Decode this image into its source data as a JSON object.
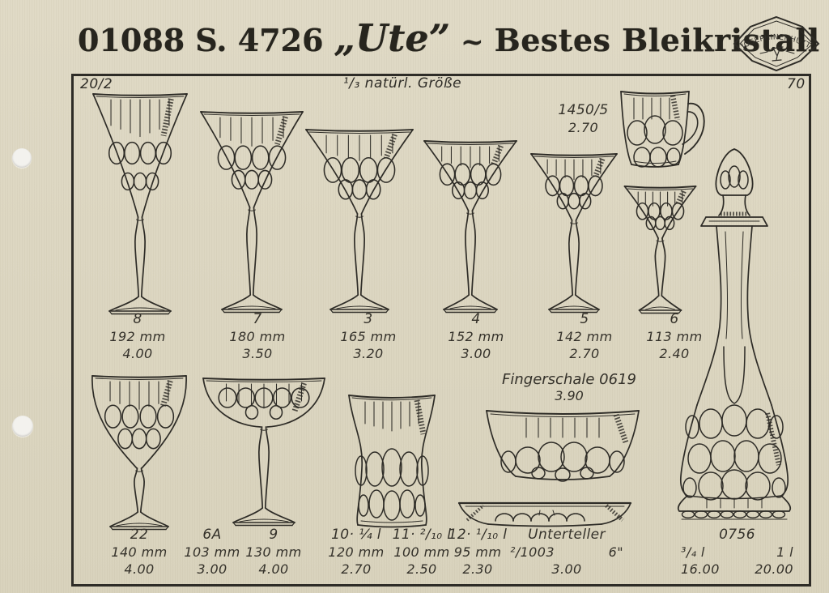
{
  "header": {
    "catalog_number": "01088",
    "series": "S. 4726",
    "pattern_name": "„Ute”",
    "separator": "~",
    "quality": "Bestes Bleikristall",
    "logo_text": "JOSEPHINENHÜTTE"
  },
  "frame": {
    "plate_number": "20/2",
    "scale_note": "¹/₃ natürl. Größe",
    "page_number": "70"
  },
  "items_row1": [
    {
      "num": "8",
      "size": "192 mm",
      "price": "4.00"
    },
    {
      "num": "7",
      "size": "180 mm",
      "price": "3.50"
    },
    {
      "num": "3",
      "size": "165 mm",
      "price": "3.20"
    },
    {
      "num": "4",
      "size": "152 mm",
      "price": "3.00"
    },
    {
      "num": "5",
      "size": "142 mm",
      "price": "2.70"
    },
    {
      "num": "6",
      "size": "113 mm",
      "price": "2.40"
    }
  ],
  "cup": {
    "num": "1450/5",
    "price": "2.70"
  },
  "fingerschale": {
    "label": "Fingerschale 0619",
    "price": "3.90"
  },
  "items_row2": [
    {
      "num": "22",
      "size": "140 mm",
      "price": "4.00"
    },
    {
      "num": "6A",
      "size": "103 mm",
      "price": "3.00"
    },
    {
      "num": "9",
      "size": "130 mm",
      "price": "4.00"
    },
    {
      "num": "10· ¼ l",
      "size": "120 mm",
      "price": "2.70"
    },
    {
      "num": "11· ²/₁₀ l",
      "size": "100 mm",
      "price": "2.50"
    },
    {
      "num": "12· ¹/₁₀ l",
      "size": "95 mm",
      "price": "2.30"
    }
  ],
  "unterteller": {
    "name": "Unterteller",
    "code": "²/1003",
    "size": "6\"",
    "price": "3.00"
  },
  "decanter": {
    "num": "0756",
    "options": [
      {
        "volume": "³/₄ l",
        "price": "16.00"
      },
      {
        "volume": "1 l",
        "price": "20.00"
      }
    ]
  }
}
